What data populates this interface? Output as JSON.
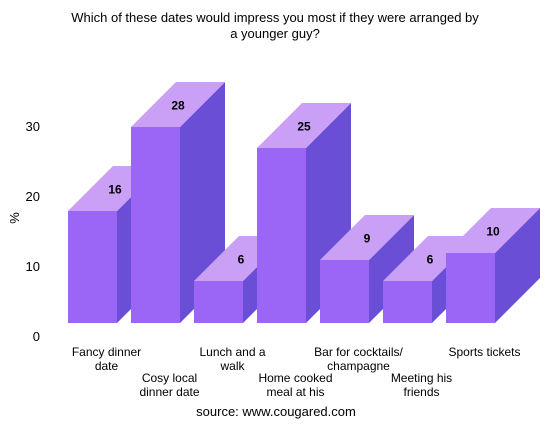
{
  "colors": {
    "front": "#9b66f5",
    "top": "#c9a0f5",
    "side": "#6a4ed6"
  },
  "chart_data": {
    "type": "bar",
    "title": [
      "Which of these dates would impress you most if they were arranged by",
      "a younger guy?"
    ],
    "ylabel": "%",
    "ylim": [
      0,
      30
    ],
    "yticks": [
      0,
      10,
      20,
      30
    ],
    "categories": [
      [
        "Fancy dinner",
        "date"
      ],
      [
        "Cosy local",
        "dinner date"
      ],
      [
        "Lunch and a",
        "walk"
      ],
      [
        "Home cooked",
        "meal at his"
      ],
      [
        "Bar for cocktails/",
        "champagne"
      ],
      [
        "Meeting his",
        "friends"
      ],
      [
        "Sports tickets"
      ]
    ],
    "values": [
      16,
      28,
      6,
      25,
      9,
      6,
      10
    ],
    "source": "source: www.cougared.com",
    "grid": false,
    "legend": "none"
  }
}
